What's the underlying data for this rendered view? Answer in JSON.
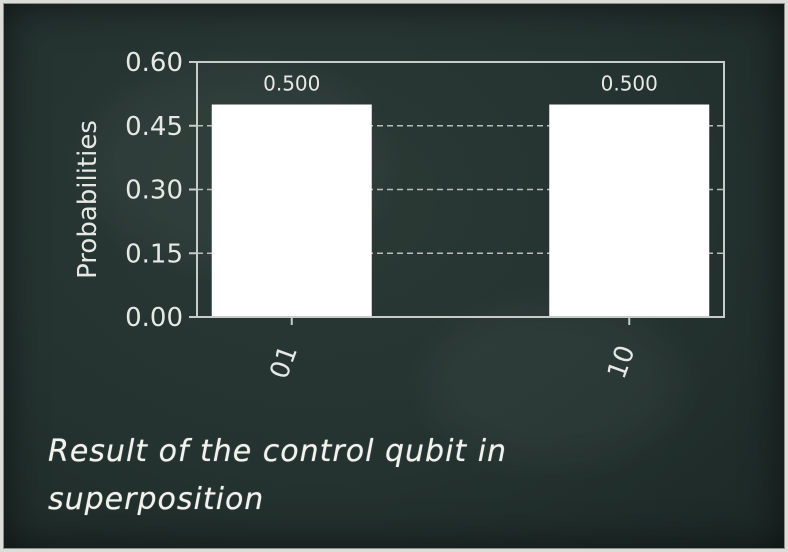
{
  "chart_data": {
    "type": "bar",
    "categories": [
      "01",
      "10"
    ],
    "values": [
      0.5,
      0.5
    ],
    "data_labels": [
      "0.500",
      "0.500"
    ],
    "ylabel": "Probabilities",
    "xlabel": "",
    "ylim": [
      0,
      0.6
    ],
    "yticks": [
      "0.00",
      "0.15",
      "0.30",
      "0.45",
      "0.60"
    ],
    "grid": "horizontal dashed",
    "bar_color": "#ffffff",
    "axis_color": "#c8ccc8"
  },
  "caption": "Result of the control qubit in superposition"
}
